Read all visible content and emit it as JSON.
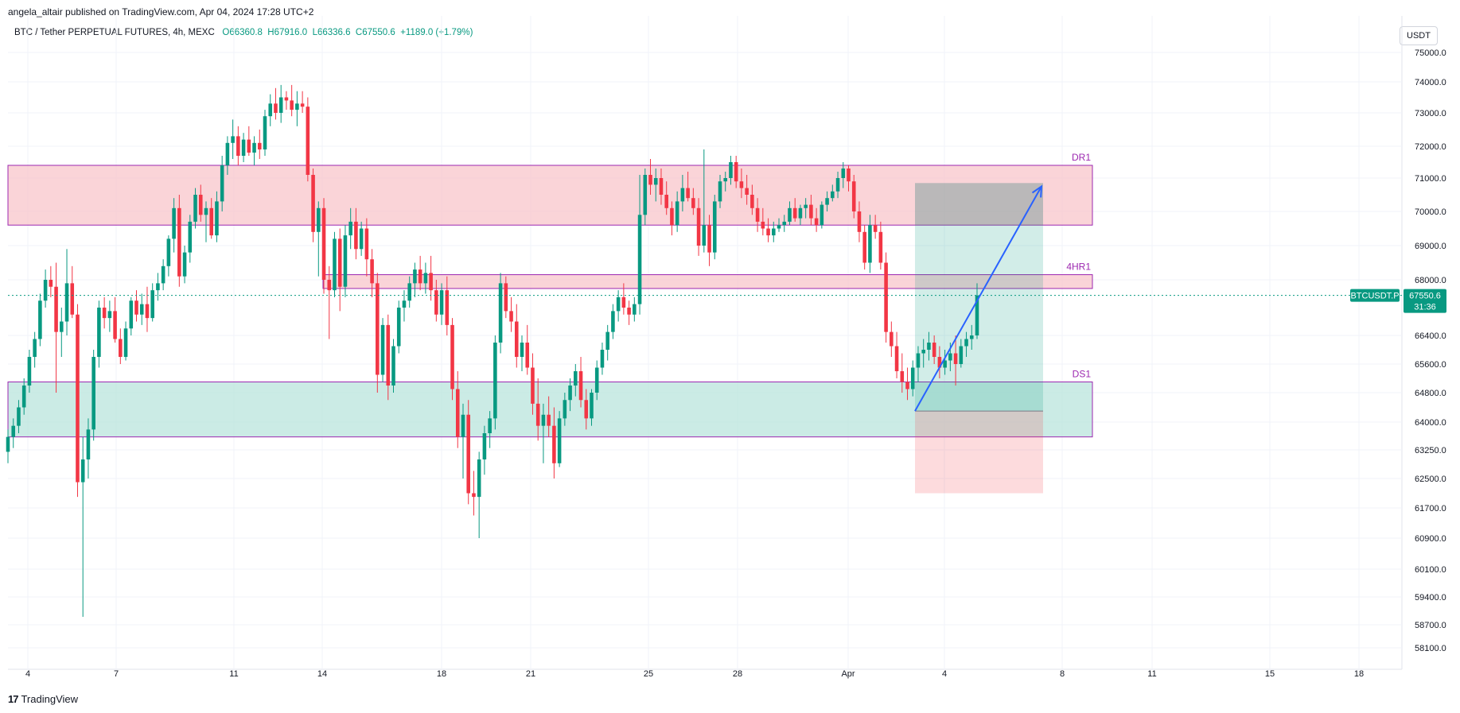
{
  "header": {
    "published_line": "angela_altair published on TradingView.com, Apr 04, 2024 17:28 UTC+2",
    "symbol_line": "BTC / Tether PERPETUAL FUTURES, 4h, MEXC",
    "open": "O66360.8",
    "high": "H67916.0",
    "low": "L66336.6",
    "close": "C67550.6",
    "change": "+1189.0 (+1.79%)",
    "currency_button": "USDT"
  },
  "footer": {
    "brand": "TradingView",
    "logo": "17"
  },
  "price_label": {
    "ticker": "BTCUSDT.P",
    "price": "67550.6",
    "countdown": "31:36"
  },
  "colors": {
    "up": "#089981",
    "down": "#f23645",
    "resistance_zone": "#f8c6cb",
    "support_zone": "#b9e4dc",
    "zone_border": "#9c27b0",
    "arrow": "#2962ff",
    "price_line": "#089981"
  },
  "chart_data": {
    "type": "candlestick",
    "interval": "4h",
    "y_ticks": [
      "75000.0",
      "74000.0",
      "73000.0",
      "72000.0",
      "71000.0",
      "70000.0",
      "69000.0",
      "68000.0",
      "66400.0",
      "65600.0",
      "64800.0",
      "64000.0",
      "63250.0",
      "62500.0",
      "61700.0",
      "60900.0",
      "60100.0",
      "59400.0",
      "58700.0",
      "58100.0"
    ],
    "x_ticks": [
      "4",
      "7",
      "11",
      "14",
      "18",
      "21",
      "25",
      "28",
      "Apr",
      "4",
      "8",
      "11",
      "15",
      "18"
    ],
    "zones": [
      {
        "label": "DR1",
        "top": 71400,
        "bottom": 69600,
        "kind": "resistance"
      },
      {
        "label": "4HR1",
        "top": 68150,
        "bottom": 67750,
        "kind": "resistance"
      },
      {
        "label": "DS1",
        "top": 65100,
        "bottom": 63600,
        "kind": "support"
      }
    ],
    "position": {
      "target": 70850,
      "entry": 64300,
      "stop": 62100
    },
    "last_price": 67550.6,
    "candles": [
      [
        63200,
        63800,
        62900,
        63600
      ],
      [
        63600,
        64100,
        63300,
        63900
      ],
      [
        63900,
        64600,
        63700,
        64400
      ],
      [
        64400,
        65200,
        64200,
        65000
      ],
      [
        65000,
        66000,
        64800,
        65800
      ],
      [
        65800,
        66500,
        65500,
        66300
      ],
      [
        66300,
        67600,
        66100,
        67400
      ],
      [
        67400,
        68300,
        67200,
        68000
      ],
      [
        68000,
        68400,
        67500,
        67800
      ],
      [
        67800,
        68500,
        64800,
        66500
      ],
      [
        66500,
        67200,
        65800,
        66800
      ],
      [
        66800,
        68900,
        66400,
        67900
      ],
      [
        67900,
        68400,
        66900,
        67000
      ],
      [
        67000,
        67300,
        62000,
        62400
      ],
      [
        62400,
        63600,
        58900,
        63000
      ],
      [
        63000,
        64100,
        62500,
        63800
      ],
      [
        63800,
        66000,
        63500,
        65800
      ],
      [
        65800,
        67400,
        65500,
        67200
      ],
      [
        67200,
        67500,
        66600,
        66900
      ],
      [
        66900,
        67400,
        66500,
        67100
      ],
      [
        67100,
        67500,
        66200,
        66300
      ],
      [
        66300,
        66600,
        65600,
        65800
      ],
      [
        65800,
        66800,
        65700,
        66600
      ],
      [
        66600,
        67500,
        66400,
        67400
      ],
      [
        67400,
        67700,
        66800,
        67000
      ],
      [
        67000,
        67600,
        66700,
        67300
      ],
      [
        67300,
        67800,
        66500,
        66900
      ],
      [
        66900,
        67900,
        66800,
        67700
      ],
      [
        67700,
        68200,
        67400,
        67900
      ],
      [
        67900,
        68600,
        67700,
        68400
      ],
      [
        68400,
        69300,
        68100,
        69200
      ],
      [
        69200,
        70400,
        68800,
        70100
      ],
      [
        70100,
        70500,
        67800,
        68100
      ],
      [
        68100,
        69000,
        67900,
        68800
      ],
      [
        68800,
        69900,
        68500,
        69700
      ],
      [
        69700,
        70700,
        69500,
        70500
      ],
      [
        70500,
        70800,
        69700,
        69900
      ],
      [
        69900,
        70300,
        69100,
        70100
      ],
      [
        70100,
        70400,
        69200,
        69300
      ],
      [
        69300,
        70600,
        69100,
        70300
      ],
      [
        70300,
        71700,
        70000,
        71400
      ],
      [
        71400,
        72300,
        71100,
        72100
      ],
      [
        72100,
        72800,
        71600,
        72300
      ],
      [
        72300,
        72600,
        71400,
        71700
      ],
      [
        71700,
        72400,
        71500,
        72200
      ],
      [
        72200,
        72600,
        71700,
        71800
      ],
      [
        71800,
        72300,
        71400,
        72100
      ],
      [
        72100,
        72500,
        71600,
        71900
      ],
      [
        71900,
        73100,
        71700,
        72900
      ],
      [
        72900,
        73600,
        72600,
        73300
      ],
      [
        73300,
        73800,
        72800,
        73000
      ],
      [
        73000,
        73900,
        72700,
        73500
      ],
      [
        73500,
        73700,
        73100,
        73400
      ],
      [
        73400,
        73900,
        72900,
        73100
      ],
      [
        73100,
        73700,
        72600,
        73300
      ],
      [
        73300,
        73700,
        73000,
        73200
      ],
      [
        73200,
        73500,
        70900,
        71100
      ],
      [
        71100,
        71300,
        69100,
        69400
      ],
      [
        69400,
        70300,
        68100,
        70100
      ],
      [
        70100,
        70400,
        67600,
        68000
      ],
      [
        68000,
        68400,
        66300,
        67700
      ],
      [
        67700,
        69400,
        67500,
        69200
      ],
      [
        69200,
        69500,
        67100,
        67800
      ],
      [
        67800,
        69600,
        67500,
        69300
      ],
      [
        69300,
        70100,
        68900,
        69700
      ],
      [
        69700,
        70100,
        68600,
        68900
      ],
      [
        68900,
        69700,
        68700,
        69500
      ],
      [
        69500,
        69800,
        68100,
        68600
      ],
      [
        68600,
        68900,
        67500,
        67900
      ],
      [
        67900,
        68200,
        64800,
        65300
      ],
      [
        65300,
        66900,
        65100,
        66700
      ],
      [
        66700,
        67000,
        64600,
        65000
      ],
      [
        65000,
        66300,
        64800,
        66100
      ],
      [
        66100,
        67400,
        65900,
        67200
      ],
      [
        67200,
        67700,
        66800,
        67400
      ],
      [
        67400,
        68100,
        67200,
        67900
      ],
      [
        67900,
        68500,
        67500,
        68300
      ],
      [
        68300,
        68700,
        67700,
        67900
      ],
      [
        67900,
        68500,
        67600,
        68200
      ],
      [
        68200,
        68700,
        67400,
        67700
      ],
      [
        67700,
        68000,
        66800,
        67000
      ],
      [
        67000,
        67900,
        66700,
        67700
      ],
      [
        67700,
        68100,
        66400,
        66700
      ],
      [
        66700,
        66900,
        64600,
        64900
      ],
      [
        64900,
        65400,
        63300,
        63600
      ],
      [
        63600,
        64500,
        62500,
        64200
      ],
      [
        64200,
        64600,
        61800,
        62100
      ],
      [
        62100,
        62700,
        61500,
        62000
      ],
      [
        62000,
        63200,
        60900,
        63000
      ],
      [
        63000,
        63900,
        62600,
        63700
      ],
      [
        63700,
        64300,
        63300,
        64100
      ],
      [
        64100,
        66400,
        63800,
        66200
      ],
      [
        66200,
        68200,
        65900,
        67900
      ],
      [
        67900,
        68100,
        66900,
        67100
      ],
      [
        67100,
        67500,
        66500,
        66800
      ],
      [
        66800,
        67300,
        65500,
        65800
      ],
      [
        65800,
        66400,
        65400,
        66200
      ],
      [
        66200,
        66700,
        65300,
        65500
      ],
      [
        65500,
        65900,
        64200,
        64500
      ],
      [
        64500,
        65200,
        63500,
        63900
      ],
      [
        63900,
        64500,
        62900,
        64200
      ],
      [
        64200,
        64700,
        63600,
        63900
      ],
      [
        63900,
        64400,
        62500,
        62900
      ],
      [
        62900,
        64300,
        62800,
        64100
      ],
      [
        64100,
        64800,
        63900,
        64600
      ],
      [
        64600,
        65200,
        64300,
        65000
      ],
      [
        65000,
        65600,
        64700,
        65400
      ],
      [
        65400,
        65800,
        64400,
        64600
      ],
      [
        64600,
        64900,
        63800,
        64100
      ],
      [
        64100,
        64900,
        63900,
        64800
      ],
      [
        64800,
        65700,
        64600,
        65500
      ],
      [
        65500,
        66200,
        65300,
        66000
      ],
      [
        66000,
        66700,
        65700,
        66500
      ],
      [
        66500,
        67300,
        66300,
        67100
      ],
      [
        67100,
        67700,
        66800,
        67500
      ],
      [
        67500,
        67900,
        67000,
        67200
      ],
      [
        67200,
        67400,
        66700,
        67000
      ],
      [
        67000,
        67500,
        66800,
        67300
      ],
      [
        67300,
        71100,
        67000,
        69900
      ],
      [
        69900,
        71300,
        69600,
        71100
      ],
      [
        71100,
        71600,
        70500,
        70800
      ],
      [
        70800,
        71300,
        70300,
        71000
      ],
      [
        71000,
        71300,
        70200,
        70500
      ],
      [
        70500,
        70900,
        69900,
        70100
      ],
      [
        70100,
        70300,
        69300,
        69600
      ],
      [
        69600,
        70600,
        69400,
        70300
      ],
      [
        70300,
        71100,
        70000,
        70700
      ],
      [
        70700,
        71200,
        70300,
        70400
      ],
      [
        70400,
        70700,
        69900,
        70100
      ],
      [
        70100,
        70400,
        68700,
        69000
      ],
      [
        69000,
        71900,
        68800,
        69600
      ],
      [
        69600,
        69900,
        68400,
        68800
      ],
      [
        68800,
        70500,
        68600,
        70300
      ],
      [
        70300,
        71100,
        70100,
        70900
      ],
      [
        70900,
        71200,
        70600,
        71000
      ],
      [
        71000,
        71700,
        70800,
        71500
      ],
      [
        71500,
        71700,
        70700,
        70900
      ],
      [
        70900,
        71300,
        70400,
        70700
      ],
      [
        70700,
        71100,
        70200,
        70500
      ],
      [
        70500,
        70800,
        69900,
        70100
      ],
      [
        70100,
        70400,
        69400,
        69700
      ],
      [
        69700,
        70100,
        69300,
        69500
      ],
      [
        69500,
        69800,
        69100,
        69300
      ],
      [
        69300,
        69700,
        69100,
        69500
      ],
      [
        69500,
        69800,
        69400,
        69600
      ],
      [
        69600,
        69900,
        69400,
        69700
      ],
      [
        69700,
        70300,
        69600,
        70100
      ],
      [
        70100,
        70400,
        69700,
        69800
      ],
      [
        69800,
        70200,
        69600,
        70100
      ],
      [
        70100,
        70400,
        69800,
        70200
      ],
      [
        70200,
        70500,
        69600,
        69800
      ],
      [
        69800,
        70100,
        69400,
        69600
      ],
      [
        69600,
        70300,
        69500,
        70200
      ],
      [
        70200,
        70600,
        70000,
        70400
      ],
      [
        70400,
        70800,
        70300,
        70600
      ],
      [
        70600,
        71200,
        70400,
        71000
      ],
      [
        71000,
        71500,
        70700,
        71300
      ],
      [
        71300,
        71400,
        70600,
        70900
      ],
      [
        70900,
        71100,
        69800,
        70000
      ],
      [
        70000,
        70300,
        69100,
        69400
      ],
      [
        69400,
        69600,
        68300,
        68500
      ],
      [
        68500,
        69900,
        68200,
        69600
      ],
      [
        69600,
        69900,
        69200,
        69400
      ],
      [
        69400,
        69700,
        68300,
        68500
      ],
      [
        68500,
        68800,
        66200,
        66500
      ],
      [
        66500,
        66800,
        65800,
        66100
      ],
      [
        66100,
        66500,
        65200,
        65400
      ],
      [
        65400,
        65900,
        64800,
        65100
      ],
      [
        65100,
        65500,
        64600,
        64900
      ],
      [
        64900,
        65700,
        64700,
        65500
      ],
      [
        65500,
        66100,
        65100,
        65900
      ],
      [
        65900,
        66300,
        65500,
        66000
      ],
      [
        66000,
        66500,
        65700,
        66200
      ],
      [
        66200,
        66400,
        65600,
        65800
      ],
      [
        65800,
        66100,
        65200,
        65500
      ],
      [
        65500,
        66000,
        65300,
        65700
      ],
      [
        65700,
        66200,
        65400,
        65900
      ],
      [
        65900,
        66400,
        65000,
        65600
      ],
      [
        65600,
        66300,
        65500,
        66100
      ],
      [
        66100,
        66500,
        65800,
        66300
      ],
      [
        66300,
        66700,
        66000,
        66400
      ],
      [
        66400,
        67900,
        66300,
        67550.6
      ]
    ]
  }
}
